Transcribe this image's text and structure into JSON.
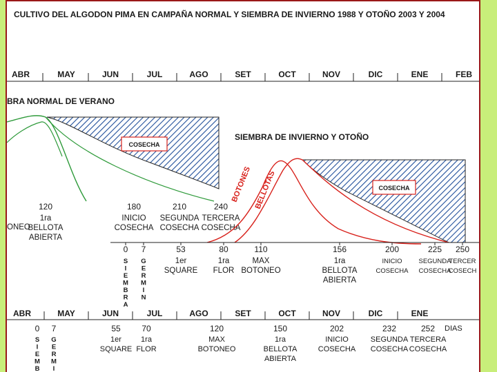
{
  "title": "CULTIVO DEL ALGODON PIMA EN CAMPAÑA NORMAL Y SIEMBRA DE INVIERNO 1988 Y OTOÑO 2003 Y 2004",
  "top_months": [
    "ABR",
    "MAY",
    "JUN",
    "JUL",
    "AGO",
    "SET",
    "OCT",
    "NOV",
    "DIC",
    "ENE",
    "FEB"
  ],
  "bottom_months": [
    "ABR",
    "MAY",
    "JUN",
    "JUL",
    "AGO",
    "SET",
    "OCT",
    "NOV",
    "DIC",
    "ENE"
  ],
  "summer_label": "BRA NORMAL DE VERANO",
  "winter_label": "SIEMBRA DE INVIERNO Y OTOÑO",
  "cosecha_label": "COSECHA",
  "botones_label": "BOTONES",
  "bellotas_label": "BELLOTAS",
  "dias_label": "DIAS",
  "summer_days": [
    {
      "day": "120",
      "l1": "1ra",
      "l2": "BELLOTA",
      "l3": "ABIERTA"
    },
    {
      "day": "180",
      "l1": "INICIO",
      "l2": "COSECHA",
      "l3": ""
    },
    {
      "day": "210",
      "l1": "SEGUNDA",
      "l2": "COSECHA",
      "l3": ""
    },
    {
      "day": "240",
      "l1": "TERCERA",
      "l2": "COSECHA",
      "l3": ""
    }
  ],
  "summer_left_fragment": "ONEO",
  "winter_days": [
    {
      "day": "0",
      "l1": "",
      "l2": "",
      "l3": ""
    },
    {
      "day": "7",
      "l1": "",
      "l2": "",
      "l3": ""
    },
    {
      "day": "53",
      "l1": "1er",
      "l2": "SQUARE",
      "l3": ""
    },
    {
      "day": "80",
      "l1": "1ra",
      "l2": "FLOR",
      "l3": ""
    },
    {
      "day": "110",
      "l1": "MAX",
      "l2": "BOTONEO",
      "l3": ""
    },
    {
      "day": "156",
      "l1": "1ra",
      "l2": "BELLOTA",
      "l3": "ABIERTA"
    },
    {
      "day": "200",
      "l1": "INICIO",
      "l2": "COSECHA",
      "l3": ""
    },
    {
      "day": "225",
      "l1": "SEGUNDA",
      "l2": "COSECHA",
      "l3": ""
    },
    {
      "day": "250",
      "l1": "TERCER",
      "l2": "COSECH",
      "l3": ""
    }
  ],
  "bottom_days": [
    {
      "day": "0",
      "l1": "",
      "l2": "",
      "l3": ""
    },
    {
      "day": "7",
      "l1": "",
      "l2": "",
      "l3": ""
    },
    {
      "day": "55",
      "l1": "1er",
      "l2": "SQUARE",
      "l3": ""
    },
    {
      "day": "70",
      "l1": "1ra",
      "l2": "FLOR",
      "l3": ""
    },
    {
      "day": "120",
      "l1": "MAX",
      "l2": "BOTONEO",
      "l3": ""
    },
    {
      "day": "150",
      "l1": "1ra",
      "l2": "BELLOTA",
      "l3": "ABIERTA"
    },
    {
      "day": "202",
      "l1": "INICIO",
      "l2": "COSECHA",
      "l3": ""
    },
    {
      "day": "232",
      "l1": "SEGUNDA",
      "l2": "COSECHA",
      "l3": ""
    },
    {
      "day": "252",
      "l1": "TERCERA",
      "l2": "COSECHA",
      "l3": ""
    }
  ],
  "siembra_vertical": "SIEMBRA",
  "germin_vertical": "GERMIN",
  "bottom_siembra_vertical": "SIEMB",
  "bottom_germin_vertical": "GERMI",
  "colors": {
    "hatch": "#1f4e9a",
    "red_curve": "#d8221c",
    "green_curve": "#2e9a3a",
    "frame": "#9a1818",
    "bottom_months": "#d8221c"
  }
}
